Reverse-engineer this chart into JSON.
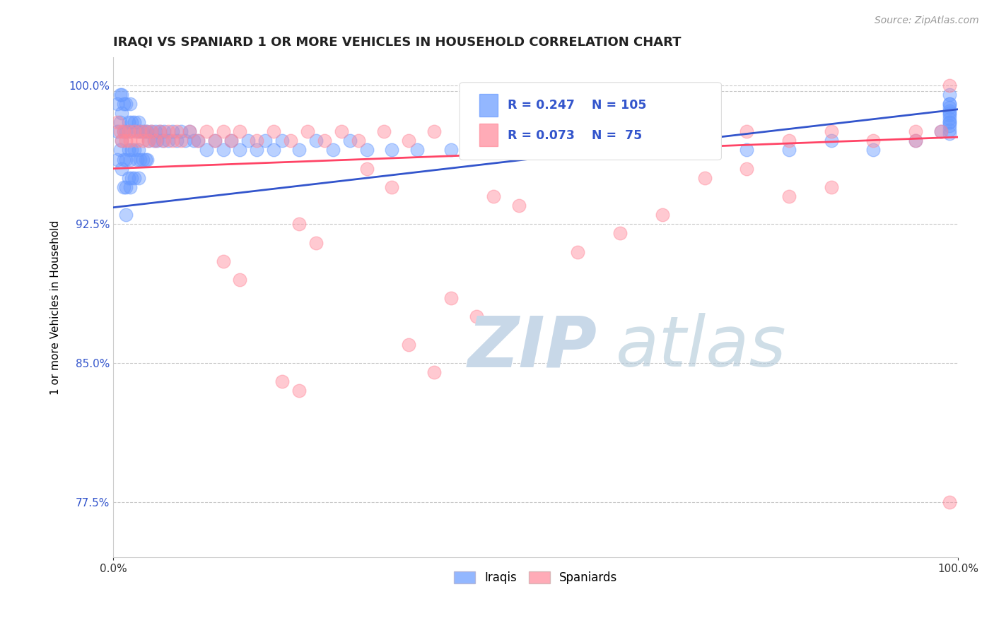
{
  "title": "IRAQI VS SPANIARD 1 OR MORE VEHICLES IN HOUSEHOLD CORRELATION CHART",
  "source_text": "Source: ZipAtlas.com",
  "ylabel": "1 or more Vehicles in Household",
  "xlim": [
    0.0,
    1.0
  ],
  "ylim": [
    0.745,
    1.015
  ],
  "yticks": [
    0.775,
    0.85,
    0.925,
    1.0
  ],
  "ytick_labels": [
    "77.5%",
    "85.0%",
    "92.5%",
    "100.0%"
  ],
  "xtick_labels": [
    "0.0%",
    "100.0%"
  ],
  "xticks": [
    0.0,
    1.0
  ],
  "iraqi_color": "#6699ff",
  "spaniard_color": "#ff8899",
  "trend_iraqi_color": "#3355cc",
  "trend_spaniard_color": "#ff4466",
  "dashed_line_color": "#bbbbbb",
  "R_iraqi": 0.247,
  "N_iraqi": 105,
  "R_spaniard": 0.073,
  "N_spaniard": 75,
  "background_color": "#ffffff",
  "iraqi_x": [
    0.005,
    0.005,
    0.005,
    0.008,
    0.008,
    0.008,
    0.01,
    0.01,
    0.01,
    0.01,
    0.012,
    0.012,
    0.012,
    0.012,
    0.015,
    0.015,
    0.015,
    0.015,
    0.015,
    0.018,
    0.018,
    0.018,
    0.02,
    0.02,
    0.02,
    0.02,
    0.022,
    0.022,
    0.022,
    0.025,
    0.025,
    0.025,
    0.028,
    0.028,
    0.03,
    0.03,
    0.03,
    0.032,
    0.032,
    0.035,
    0.035,
    0.038,
    0.038,
    0.04,
    0.04,
    0.042,
    0.045,
    0.048,
    0.05,
    0.052,
    0.055,
    0.058,
    0.06,
    0.065,
    0.07,
    0.075,
    0.08,
    0.085,
    0.09,
    0.095,
    0.1,
    0.11,
    0.12,
    0.13,
    0.14,
    0.15,
    0.16,
    0.17,
    0.18,
    0.19,
    0.2,
    0.22,
    0.24,
    0.26,
    0.28,
    0.3,
    0.33,
    0.36,
    0.4,
    0.44,
    0.48,
    0.52,
    0.56,
    0.6,
    0.65,
    0.7,
    0.75,
    0.8,
    0.85,
    0.9,
    0.95,
    0.98,
    0.99,
    0.99,
    0.99,
    0.99,
    0.99,
    0.99,
    0.99,
    0.99,
    0.99,
    0.99,
    0.99,
    0.99,
    0.99
  ],
  "iraqi_y": [
    0.99,
    0.975,
    0.96,
    0.995,
    0.98,
    0.965,
    0.995,
    0.985,
    0.97,
    0.955,
    0.99,
    0.975,
    0.96,
    0.945,
    0.99,
    0.975,
    0.96,
    0.945,
    0.93,
    0.98,
    0.965,
    0.95,
    0.99,
    0.975,
    0.96,
    0.945,
    0.98,
    0.965,
    0.95,
    0.98,
    0.965,
    0.95,
    0.975,
    0.96,
    0.98,
    0.965,
    0.95,
    0.975,
    0.96,
    0.975,
    0.96,
    0.975,
    0.96,
    0.975,
    0.96,
    0.97,
    0.975,
    0.97,
    0.975,
    0.97,
    0.975,
    0.97,
    0.975,
    0.97,
    0.975,
    0.97,
    0.975,
    0.97,
    0.975,
    0.97,
    0.97,
    0.965,
    0.97,
    0.965,
    0.97,
    0.965,
    0.97,
    0.965,
    0.97,
    0.965,
    0.97,
    0.965,
    0.97,
    0.965,
    0.97,
    0.965,
    0.965,
    0.965,
    0.965,
    0.965,
    0.965,
    0.965,
    0.965,
    0.965,
    0.965,
    0.965,
    0.965,
    0.965,
    0.97,
    0.965,
    0.97,
    0.975,
    0.98,
    0.985,
    0.99,
    0.995,
    0.99,
    0.988,
    0.986,
    0.984,
    0.982,
    0.98,
    0.978,
    0.976,
    0.974
  ],
  "spaniard_x": [
    0.005,
    0.008,
    0.01,
    0.012,
    0.015,
    0.018,
    0.02,
    0.025,
    0.028,
    0.032,
    0.035,
    0.038,
    0.042,
    0.045,
    0.05,
    0.055,
    0.06,
    0.065,
    0.07,
    0.075,
    0.08,
    0.09,
    0.1,
    0.11,
    0.12,
    0.13,
    0.14,
    0.15,
    0.17,
    0.19,
    0.21,
    0.23,
    0.25,
    0.27,
    0.29,
    0.32,
    0.35,
    0.38,
    0.42,
    0.46,
    0.5,
    0.55,
    0.6,
    0.65,
    0.7,
    0.75,
    0.8,
    0.85,
    0.9,
    0.95,
    0.99,
    0.3,
    0.33,
    0.45,
    0.48,
    0.22,
    0.24,
    0.13,
    0.15,
    0.55,
    0.6,
    0.65,
    0.8,
    0.85,
    0.7,
    0.75,
    0.4,
    0.43,
    0.35,
    0.38,
    0.2,
    0.22,
    0.95,
    0.98,
    0.99
  ],
  "spaniard_y": [
    0.98,
    0.975,
    0.97,
    0.975,
    0.97,
    0.975,
    0.97,
    0.975,
    0.97,
    0.975,
    0.97,
    0.975,
    0.97,
    0.975,
    0.97,
    0.975,
    0.97,
    0.975,
    0.97,
    0.975,
    0.97,
    0.975,
    0.97,
    0.975,
    0.97,
    0.975,
    0.97,
    0.975,
    0.97,
    0.975,
    0.97,
    0.975,
    0.97,
    0.975,
    0.97,
    0.975,
    0.97,
    0.975,
    0.97,
    0.975,
    0.97,
    0.975,
    0.97,
    0.975,
    0.97,
    0.975,
    0.97,
    0.975,
    0.97,
    0.975,
    1.0,
    0.955,
    0.945,
    0.94,
    0.935,
    0.925,
    0.915,
    0.905,
    0.895,
    0.91,
    0.92,
    0.93,
    0.94,
    0.945,
    0.95,
    0.955,
    0.885,
    0.875,
    0.86,
    0.845,
    0.84,
    0.835,
    0.97,
    0.975,
    0.775
  ]
}
